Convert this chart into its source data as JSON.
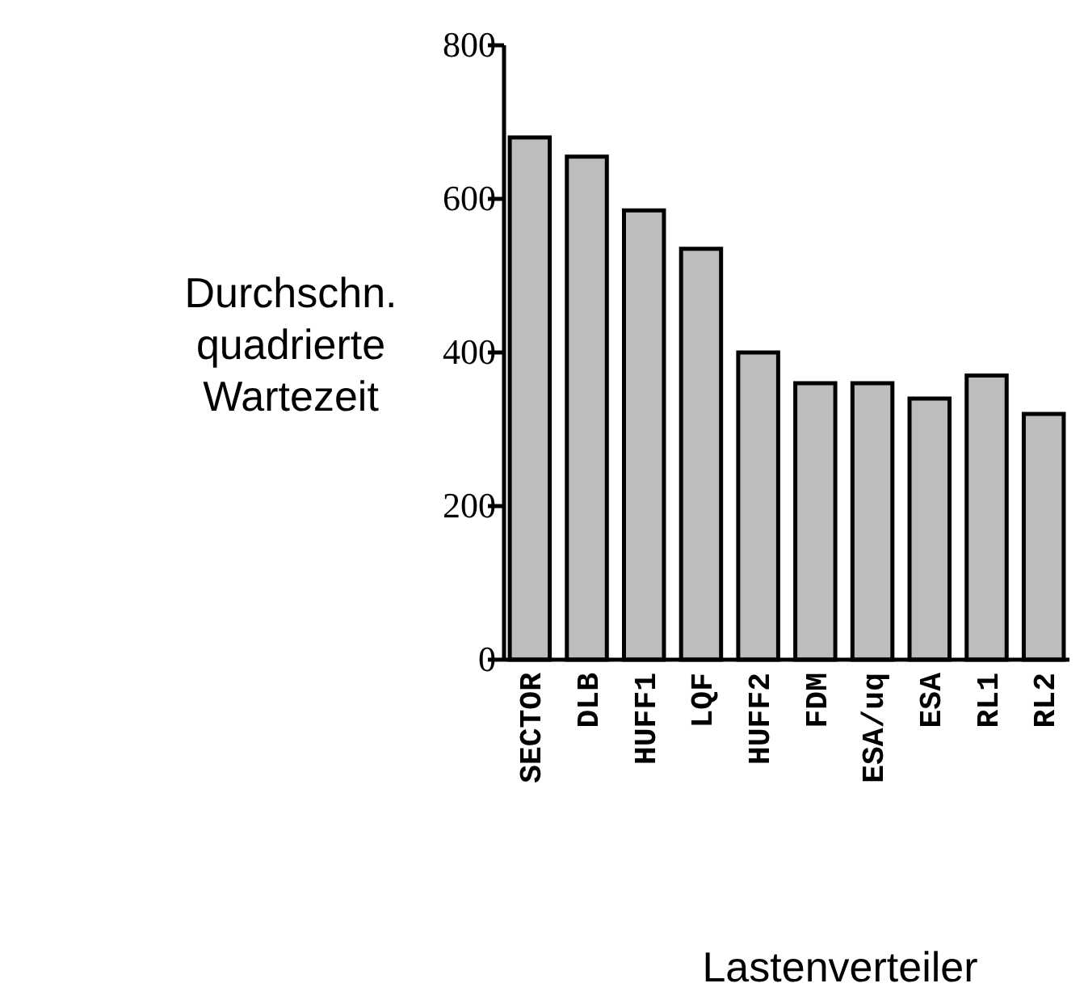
{
  "chart_data": {
    "type": "bar",
    "xlabel": "Lastenverteiler",
    "ylabel": "Durchschn.\nquadrierte\nWartezeit",
    "categories": [
      "SECTOR",
      "DLB",
      "HUFF1",
      "LQF",
      "HUFF2",
      "FDM",
      "ESA/uq",
      "ESA",
      "RL1",
      "RL2"
    ],
    "values": [
      680,
      655,
      585,
      535,
      400,
      360,
      360,
      340,
      370,
      320
    ],
    "color": "#bdbdbd",
    "ylim": [
      0,
      800
    ],
    "yticks": [
      0,
      200,
      400,
      600,
      800
    ],
    "grid": false
  }
}
